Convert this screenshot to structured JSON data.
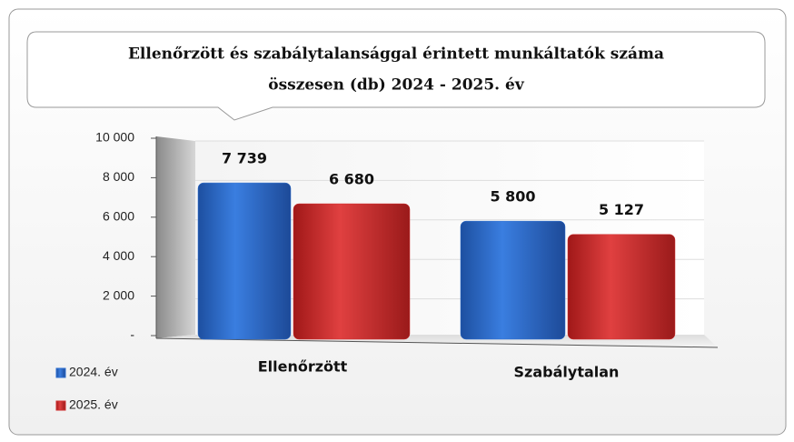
{
  "chart_data": {
    "type": "bar",
    "title": [
      "Ellenőrzött és szabálytalansággal érintett munkáltatók száma",
      "összesen (db)    2024 - 2025. év"
    ],
    "categories": [
      "Ellenőrzött",
      "Szabálytalan"
    ],
    "series": [
      {
        "name": "2024. év",
        "color": "#2e6fd0",
        "values": [
          7739,
          5800
        ],
        "value_labels": [
          "7 739",
          "5 800"
        ]
      },
      {
        "name": "2025. év",
        "color": "#d03030",
        "values": [
          6680,
          5127
        ],
        "value_labels": [
          "6 680",
          "5 127"
        ]
      }
    ],
    "ylim": [
      0,
      10000
    ],
    "yticks": [
      {
        "value": 0,
        "label": "-"
      },
      {
        "value": 2000,
        "label": "2 000"
      },
      {
        "value": 4000,
        "label": "4 000"
      },
      {
        "value": 6000,
        "label": "6 000"
      },
      {
        "value": 8000,
        "label": "8 000"
      },
      {
        "value": 10000,
        "label": "10 000"
      }
    ],
    "grid": true,
    "legend": "bottom-left"
  }
}
